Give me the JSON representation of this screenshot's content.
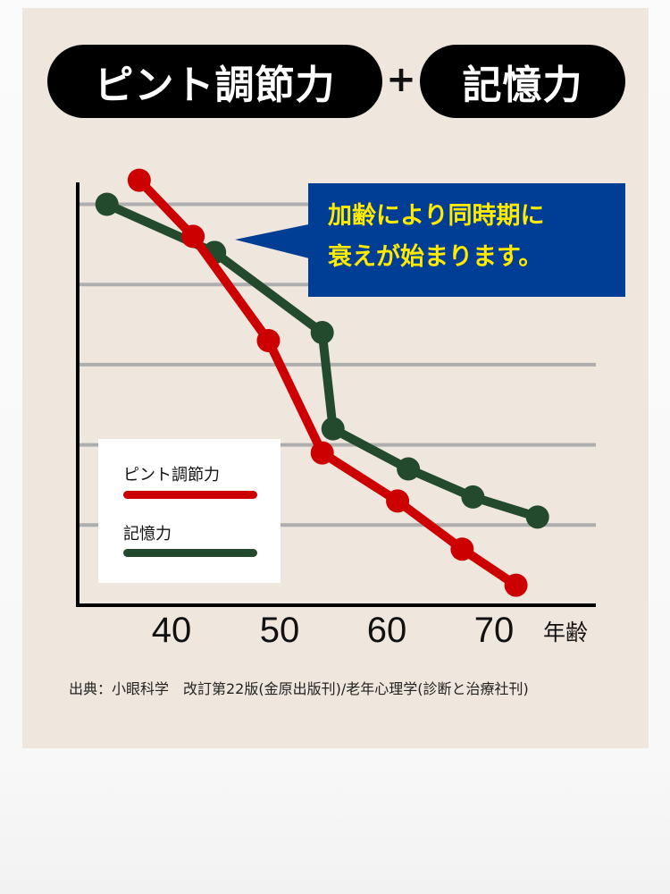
{
  "header": {
    "pill_left": "ピント調節力",
    "plus": "+",
    "pill_right": "記憶力"
  },
  "callout": {
    "line1": "加齢により同時期に",
    "line2": "衰えが始まります。",
    "background": "#003E96",
    "text_color": "#FFEA00"
  },
  "legend": {
    "items": [
      {
        "label": "ピント調節力",
        "color": "#CC0000"
      },
      {
        "label": "記憶力",
        "color": "#234A2C"
      }
    ]
  },
  "axis": {
    "x_ticks": [
      "40",
      "50",
      "60",
      "70"
    ],
    "x_label": "年齢"
  },
  "source": "出典：小眼科学　改訂第22版(金原出版刊)/老年心理学(診断と治療社刊)",
  "colors": {
    "card_background": "#EFE7DD",
    "gridline": "#AEAEAE",
    "axis": "#000000"
  },
  "chart_data": {
    "type": "line",
    "title": "ピント調節力 + 記憶力",
    "xlabel": "年齢",
    "ylabel": "",
    "x_ticks": [
      40,
      50,
      60,
      70
    ],
    "xlim": [
      30,
      75
    ],
    "ylim": [
      0,
      5.3
    ],
    "y_gridlines": [
      1,
      2,
      3,
      4,
      5
    ],
    "grid": true,
    "legend_position": "lower-left inside",
    "annotation": "加齢により同時期に衰えが始まります。",
    "series": [
      {
        "name": "ピント調節力",
        "color": "#CC0000",
        "x": [
          37,
          42,
          49,
          54,
          61,
          67,
          72
        ],
        "y": [
          5.3,
          4.6,
          3.3,
          1.9,
          1.3,
          0.7,
          0.25
        ]
      },
      {
        "name": "記憶力",
        "color": "#234A2C",
        "x": [
          34,
          44,
          54,
          55,
          62,
          68,
          74
        ],
        "y": [
          5.0,
          4.4,
          3.4,
          2.2,
          1.7,
          1.35,
          1.1
        ]
      }
    ],
    "source": "出典：小眼科学　改訂第22版(金原出版刊)/老年心理学(診断と治療社刊)"
  }
}
